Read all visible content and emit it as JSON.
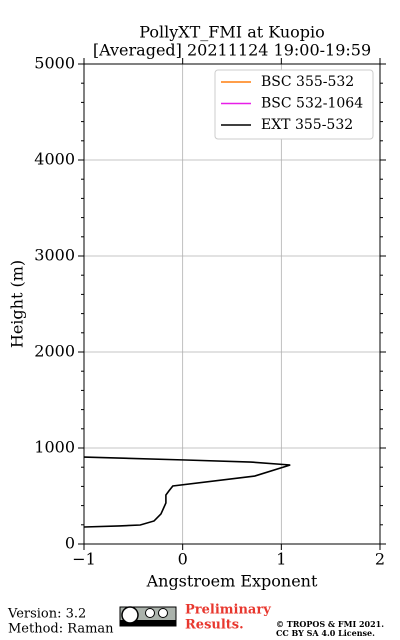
{
  "chart_data": {
    "type": "line",
    "title": [
      "PollyXT_FMI at Kuopio",
      "[Averaged] 20211124 19:00-19:59"
    ],
    "xlabel": "Angstroem Exponent",
    "ylabel": "Height (m)",
    "xlim": [
      -1,
      2
    ],
    "ylim": [
      0,
      5000
    ],
    "xticks": [
      {
        "value": -1,
        "label": "−1"
      },
      0,
      1,
      2
    ],
    "yticks": [
      0,
      1000,
      2000,
      3000,
      4000,
      5000
    ],
    "yminorticks": [
      200,
      400,
      600,
      800,
      1200,
      1400,
      1600,
      1800,
      2200,
      2400,
      2600,
      2800,
      3200,
      3400,
      3600,
      3800,
      4200,
      4400,
      4600,
      4800
    ],
    "grid": true,
    "legend": "upper right",
    "series": [
      {
        "name": "BSC 355-532",
        "color": "#ff7f0e",
        "x": [],
        "values": []
      },
      {
        "name": "BSC 532-1064",
        "color": "#e81ee8",
        "x": [],
        "values": []
      },
      {
        "name": "EXT 355-532",
        "color": "#000000",
        "x": [
          -1.0,
          0.03,
          0.69,
          1.09,
          0.73,
          -0.1,
          -0.14,
          -0.17,
          -0.17,
          -0.22,
          -0.29,
          -0.43,
          -0.64,
          -1.0
        ],
        "values": [
          906,
          875,
          854,
          823,
          708,
          604,
          552,
          510,
          427,
          313,
          240,
          198,
          188,
          177
        ]
      }
    ]
  },
  "footer": {
    "version": "Version: 3.2",
    "method": "Method: Raman",
    "preliminary": [
      "Preliminary",
      "Results."
    ],
    "license": [
      "© TROPOS & FMI 2021.",
      "CC BY SA 4.0 License."
    ]
  }
}
